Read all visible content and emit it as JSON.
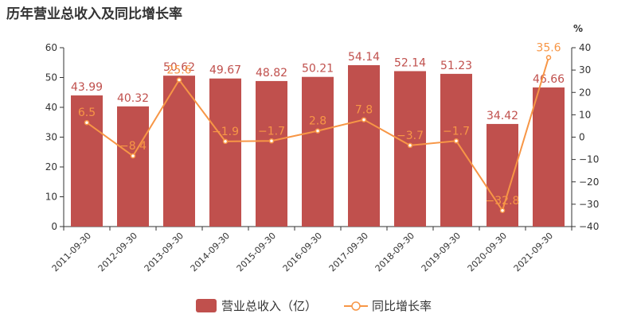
{
  "title": "历年营业总收入及同比增长率",
  "chart_data": {
    "type": "bar",
    "categories": [
      "2011-09-30",
      "2012-09-30",
      "2013-09-30",
      "2014-09-30",
      "2015-09-30",
      "2016-09-30",
      "2017-09-30",
      "2018-09-30",
      "2019-09-30",
      "2020-09-30",
      "2021-09-30"
    ],
    "series": [
      {
        "name": "营业总收入（亿）",
        "type": "bar",
        "axis": "left",
        "color": "#c0504d",
        "values": [
          43.99,
          40.32,
          50.62,
          49.67,
          48.82,
          50.21,
          54.14,
          52.14,
          51.23,
          34.42,
          46.66
        ],
        "labels": [
          "43.99",
          "40.32",
          "50.62",
          "49.67",
          "48.82",
          "50.21",
          "54.14",
          "52.14",
          "51.23",
          "34.42",
          "46.66"
        ]
      },
      {
        "name": "同比增长率",
        "type": "line",
        "axis": "right",
        "color": "#f79646",
        "values": [
          6.5,
          -8.4,
          25.6,
          -1.9,
          -1.7,
          2.8,
          7.8,
          -3.7,
          -1.7,
          -32.8,
          35.6
        ],
        "labels": [
          "6.5",
          "−8.4",
          "25.6",
          "−1.9",
          "−1.7",
          "2.8",
          "7.8",
          "−3.7",
          "−1.7",
          "−32.8",
          "35.6"
        ]
      }
    ],
    "y_left": {
      "range": [
        0,
        60
      ],
      "ticks": [
        "0",
        "10",
        "20",
        "30",
        "40",
        "50",
        "60"
      ]
    },
    "y_right": {
      "unit": "%",
      "range": [
        -40,
        40
      ],
      "ticks": [
        "−40",
        "−30",
        "−20",
        "−10",
        "0",
        "10",
        "20",
        "30",
        "40"
      ]
    },
    "grid": false,
    "legend_position": "bottom-center"
  }
}
